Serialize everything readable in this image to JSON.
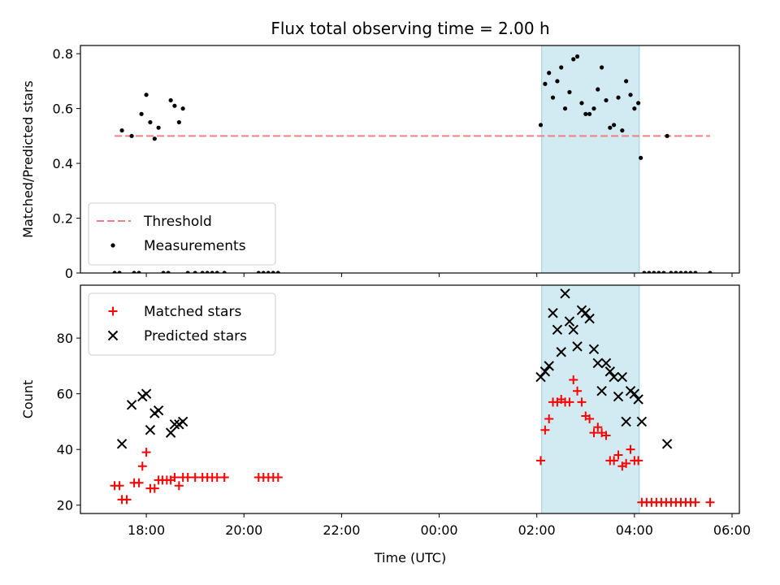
{
  "chart_data": {
    "title": "Flux total observing time = 2.00 h",
    "xlabel": "Time (UTC)",
    "x_ticks": [
      "18:00",
      "20:00",
      "22:00",
      "00:00",
      "02:00",
      "04:00",
      "06:00"
    ],
    "shaded_interval": {
      "start_h": 26.1,
      "end_h": 28.1,
      "color": "#add8e6"
    },
    "panels": [
      {
        "type": "scatter",
        "ylabel": "Matched/Predicted stars",
        "ylim": [
          0,
          0.83
        ],
        "y_ticks": [
          0.0,
          0.2,
          0.4,
          0.6,
          0.8
        ],
        "legend": {
          "placement": "lower-left",
          "entries": [
            "Threshold",
            "Measurements"
          ]
        },
        "threshold": {
          "name": "Threshold",
          "value": 0.5,
          "x_range": [
            17.35,
            29.55
          ],
          "color": "#f08080"
        },
        "series": [
          {
            "name": "Measurements",
            "marker": "dot",
            "color": "#000000",
            "points": [
              [
                17.5,
                0.52
              ],
              [
                17.7,
                0.5
              ],
              [
                17.9,
                0.58
              ],
              [
                18.0,
                0.65
              ],
              [
                18.08,
                0.55
              ],
              [
                18.17,
                0.49
              ],
              [
                18.25,
                0.53
              ],
              [
                18.5,
                0.63
              ],
              [
                18.58,
                0.61
              ],
              [
                18.67,
                0.55
              ],
              [
                18.75,
                0.6
              ],
              [
                26.08,
                0.54
              ],
              [
                26.17,
                0.69
              ],
              [
                26.25,
                0.73
              ],
              [
                26.33,
                0.64
              ],
              [
                26.42,
                0.7
              ],
              [
                26.5,
                0.75
              ],
              [
                26.58,
                0.6
              ],
              [
                26.67,
                0.66
              ],
              [
                26.75,
                0.78
              ],
              [
                26.83,
                0.79
              ],
              [
                26.92,
                0.62
              ],
              [
                27.0,
                0.58
              ],
              [
                27.08,
                0.58
              ],
              [
                27.17,
                0.6
              ],
              [
                27.25,
                0.67
              ],
              [
                27.33,
                0.75
              ],
              [
                27.42,
                0.63
              ],
              [
                27.5,
                0.53
              ],
              [
                27.58,
                0.54
              ],
              [
                27.67,
                0.64
              ],
              [
                27.75,
                0.52
              ],
              [
                27.83,
                0.7
              ],
              [
                27.92,
                0.65
              ],
              [
                28.0,
                0.6
              ],
              [
                28.08,
                0.62
              ],
              [
                28.13,
                0.42
              ],
              [
                28.67,
                0.5
              ],
              [
                17.35,
                0.0
              ],
              [
                17.45,
                0.0
              ],
              [
                17.75,
                0.0
              ],
              [
                17.85,
                0.0
              ],
              [
                18.35,
                0.0
              ],
              [
                18.45,
                0.0
              ],
              [
                18.85,
                0.0
              ],
              [
                19.0,
                0.0
              ],
              [
                19.15,
                0.0
              ],
              [
                19.25,
                0.0
              ],
              [
                19.35,
                0.0
              ],
              [
                19.45,
                0.0
              ],
              [
                19.6,
                0.0
              ],
              [
                20.3,
                0.0
              ],
              [
                20.4,
                0.0
              ],
              [
                20.5,
                0.0
              ],
              [
                20.6,
                0.0
              ],
              [
                20.7,
                0.0
              ],
              [
                28.2,
                0.0
              ],
              [
                28.3,
                0.0
              ],
              [
                28.4,
                0.0
              ],
              [
                28.5,
                0.0
              ],
              [
                28.6,
                0.0
              ],
              [
                28.75,
                0.0
              ],
              [
                28.85,
                0.0
              ],
              [
                28.95,
                0.0
              ],
              [
                29.05,
                0.0
              ],
              [
                29.15,
                0.0
              ],
              [
                29.25,
                0.0
              ],
              [
                29.55,
                0.0
              ]
            ]
          }
        ]
      },
      {
        "type": "scatter",
        "ylabel": "Count",
        "ylim": [
          17,
          99
        ],
        "y_ticks": [
          20,
          40,
          60,
          80
        ],
        "legend": {
          "placement": "upper-left",
          "entries": [
            "Matched stars",
            "Predicted stars"
          ]
        },
        "series": [
          {
            "name": "Matched stars",
            "marker": "plus",
            "color": "#ff0000",
            "points": [
              [
                17.35,
                27
              ],
              [
                17.45,
                27
              ],
              [
                17.5,
                22
              ],
              [
                17.6,
                22
              ],
              [
                17.75,
                28
              ],
              [
                17.85,
                28
              ],
              [
                17.92,
                34
              ],
              [
                18.0,
                39
              ],
              [
                18.08,
                26
              ],
              [
                18.17,
                26
              ],
              [
                18.25,
                29
              ],
              [
                18.33,
                29
              ],
              [
                18.42,
                29
              ],
              [
                18.5,
                29
              ],
              [
                18.58,
                30
              ],
              [
                18.67,
                27
              ],
              [
                18.75,
                30
              ],
              [
                18.85,
                30
              ],
              [
                19.0,
                30
              ],
              [
                19.15,
                30
              ],
              [
                19.25,
                30
              ],
              [
                19.35,
                30
              ],
              [
                19.45,
                30
              ],
              [
                19.6,
                30
              ],
              [
                20.3,
                30
              ],
              [
                20.4,
                30
              ],
              [
                20.5,
                30
              ],
              [
                20.6,
                30
              ],
              [
                20.7,
                30
              ],
              [
                26.08,
                36
              ],
              [
                26.17,
                47
              ],
              [
                26.25,
                51
              ],
              [
                26.33,
                57
              ],
              [
                26.42,
                57
              ],
              [
                26.5,
                58
              ],
              [
                26.58,
                57
              ],
              [
                26.67,
                57
              ],
              [
                26.75,
                65
              ],
              [
                26.83,
                61
              ],
              [
                26.92,
                57
              ],
              [
                27.0,
                52
              ],
              [
                27.08,
                51
              ],
              [
                27.17,
                46
              ],
              [
                27.25,
                48
              ],
              [
                27.33,
                46
              ],
              [
                27.42,
                45
              ],
              [
                27.5,
                36
              ],
              [
                27.58,
                36
              ],
              [
                27.67,
                38
              ],
              [
                27.75,
                34
              ],
              [
                27.83,
                35
              ],
              [
                27.92,
                40
              ],
              [
                28.0,
                36
              ],
              [
                28.08,
                36
              ],
              [
                28.15,
                21
              ],
              [
                28.25,
                21
              ],
              [
                28.35,
                21
              ],
              [
                28.45,
                21
              ],
              [
                28.55,
                21
              ],
              [
                28.65,
                21
              ],
              [
                28.75,
                21
              ],
              [
                28.85,
                21
              ],
              [
                28.95,
                21
              ],
              [
                29.05,
                21
              ],
              [
                29.15,
                21
              ],
              [
                29.25,
                21
              ],
              [
                29.55,
                21
              ]
            ]
          },
          {
            "name": "Predicted stars",
            "marker": "x",
            "color": "#000000",
            "points": [
              [
                17.5,
                42
              ],
              [
                17.7,
                56
              ],
              [
                17.92,
                59
              ],
              [
                18.0,
                60
              ],
              [
                18.08,
                47
              ],
              [
                18.17,
                53
              ],
              [
                18.25,
                54
              ],
              [
                18.5,
                46
              ],
              [
                18.58,
                49
              ],
              [
                18.67,
                49
              ],
              [
                18.75,
                50
              ],
              [
                26.08,
                66
              ],
              [
                26.17,
                68
              ],
              [
                26.25,
                70
              ],
              [
                26.33,
                89
              ],
              [
                26.42,
                83
              ],
              [
                26.5,
                75
              ],
              [
                26.58,
                96
              ],
              [
                26.67,
                86
              ],
              [
                26.75,
                83
              ],
              [
                26.83,
                77
              ],
              [
                26.92,
                90
              ],
              [
                27.0,
                89
              ],
              [
                27.08,
                87
              ],
              [
                27.17,
                76
              ],
              [
                27.25,
                71
              ],
              [
                27.33,
                61
              ],
              [
                27.42,
                71
              ],
              [
                27.5,
                68
              ],
              [
                27.58,
                66
              ],
              [
                27.67,
                59
              ],
              [
                27.75,
                66
              ],
              [
                27.83,
                50
              ],
              [
                27.92,
                61
              ],
              [
                28.0,
                60
              ],
              [
                28.08,
                58
              ],
              [
                28.15,
                50
              ],
              [
                28.67,
                42
              ]
            ]
          }
        ]
      }
    ]
  }
}
